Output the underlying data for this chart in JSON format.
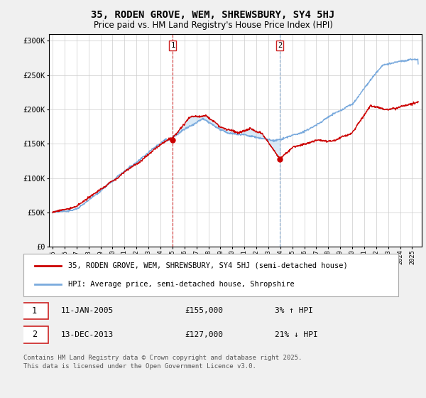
{
  "title": "35, RODEN GROVE, WEM, SHREWSBURY, SY4 5HJ",
  "subtitle": "Price paid vs. HM Land Registry's House Price Index (HPI)",
  "ylabel_ticks": [
    "£0",
    "£50K",
    "£100K",
    "£150K",
    "£200K",
    "£250K",
    "£300K"
  ],
  "ytick_values": [
    0,
    50000,
    100000,
    150000,
    200000,
    250000,
    300000
  ],
  "ylim": [
    0,
    310000
  ],
  "xlim_start": 1994.7,
  "xlim_end": 2025.8,
  "marker1_x": 2005.03,
  "marker1_y": 155000,
  "marker1_label": "1",
  "marker2_x": 2013.95,
  "marker2_y": 127000,
  "marker2_label": "2",
  "shaded_color": "#daeaf7",
  "red_line_color": "#cc0000",
  "blue_line_color": "#7aaadd",
  "marker_box_color": "#cc2222",
  "grid_color": "#cccccc",
  "bg_color": "#f0f0f0",
  "plot_bg": "#ffffff",
  "legend_label_red": "35, RODEN GROVE, WEM, SHREWSBURY, SY4 5HJ (semi-detached house)",
  "legend_label_blue": "HPI: Average price, semi-detached house, Shropshire",
  "annotation1_date": "11-JAN-2005",
  "annotation1_price": "£155,000",
  "annotation1_pct": "3% ↑ HPI",
  "annotation2_date": "13-DEC-2013",
  "annotation2_price": "£127,000",
  "annotation2_pct": "21% ↓ HPI",
  "footer": "Contains HM Land Registry data © Crown copyright and database right 2025.\nThis data is licensed under the Open Government Licence v3.0.",
  "title_fontsize": 10,
  "subtitle_fontsize": 8.5,
  "tick_fontsize": 7.5,
  "legend_fontsize": 7.5,
  "annotation_fontsize": 8,
  "footer_fontsize": 6.5
}
